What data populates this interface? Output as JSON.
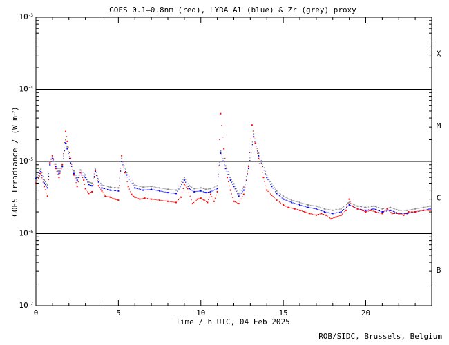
{
  "chart_data": {
    "type": "scatter",
    "title": "GOES 0.1–0.8nm (red), LYRA Al (blue) & Zr (grey) proxy",
    "xlabel": "Time / h UTC, 04 Feb 2025",
    "ylabel": "GOES Irradiance / (W m",
    "ylabel_sup": "-2",
    "ylabel_end": ")",
    "xlim": [
      0,
      24
    ],
    "ylim": [
      1e-07,
      0.001
    ],
    "yscale": "log",
    "x_ticks": [
      {
        "value": 0,
        "label": "0"
      },
      {
        "value": 5,
        "label": "5"
      },
      {
        "value": 10,
        "label": "10"
      },
      {
        "value": 15,
        "label": "15"
      },
      {
        "value": 20,
        "label": "20"
      }
    ],
    "y_ticks": [
      {
        "value": 0.001,
        "label": "10",
        "exp": "-3"
      },
      {
        "value": 0.0001,
        "label": "10",
        "exp": "-4"
      },
      {
        "value": 1e-05,
        "label": "10",
        "exp": "-5"
      },
      {
        "value": 1e-06,
        "label": "10",
        "exp": "-6"
      },
      {
        "value": 1e-07,
        "label": "10",
        "exp": "-7"
      }
    ],
    "flare_classes": [
      {
        "label": "X",
        "low": 0.0001,
        "high": 0.001
      },
      {
        "label": "M",
        "low": 1e-05,
        "high": 0.0001
      },
      {
        "label": "C",
        "low": 1e-06,
        "high": 1e-05
      },
      {
        "label": "B",
        "low": 1e-07,
        "high": 1e-06
      }
    ],
    "threshold_lines": [
      0.0001,
      1e-05,
      1e-06
    ],
    "colors": {
      "goes": "#ff0000",
      "lyra_al": "#0000ff",
      "lyra_zr": "#888888"
    },
    "series": [
      {
        "name": "GOES 0.1–0.8nm",
        "color": "#ff0000",
        "x": [
          0.0,
          0.3,
          0.5,
          0.7,
          0.85,
          1.0,
          1.2,
          1.4,
          1.6,
          1.8,
          1.9,
          2.1,
          2.3,
          2.5,
          2.7,
          2.9,
          3.0,
          3.2,
          3.4,
          3.6,
          3.8,
          4.0,
          4.2,
          4.5,
          4.8,
          5.0,
          5.2,
          5.4,
          5.6,
          5.8,
          6.0,
          6.3,
          6.6,
          7.0,
          7.5,
          8.0,
          8.5,
          8.8,
          9.0,
          9.2,
          9.5,
          9.8,
          10.0,
          10.2,
          10.4,
          10.6,
          10.8,
          11.0,
          11.2,
          11.4,
          11.6,
          11.8,
          12.0,
          12.3,
          12.6,
          12.9,
          13.1,
          13.3,
          13.5,
          13.8,
          14.0,
          14.3,
          14.6,
          15.0,
          15.3,
          15.7,
          16.0,
          16.3,
          16.6,
          17.0,
          17.3,
          17.6,
          17.9,
          18.2,
          18.5,
          18.8,
          19.0,
          19.2,
          19.5,
          19.8,
          20.0,
          20.3,
          20.6,
          21.0,
          21.3,
          21.6,
          22.0,
          22.3,
          22.6,
          23.0,
          23.5,
          23.9
        ],
        "y": [
          5e-06,
          6.8e-06,
          4.5e-06,
          3.3e-06,
          9.5e-06,
          1.2e-05,
          8e-06,
          6e-06,
          9e-06,
          2.6e-05,
          1.9e-05,
          1.1e-05,
          6.5e-06,
          4.5e-06,
          7e-06,
          5.5e-06,
          4.2e-06,
          3.6e-06,
          3.8e-06,
          7.5e-06,
          4.6e-06,
          3.9e-06,
          3.3e-06,
          3.2e-06,
          3e-06,
          2.9e-06,
          1.2e-05,
          7e-06,
          4.5e-06,
          3.5e-06,
          3.2e-06,
          3e-06,
          3.1e-06,
          3e-06,
          2.9e-06,
          2.8e-06,
          2.7e-06,
          3.2e-06,
          4.8e-06,
          4.2e-06,
          2.6e-06,
          3e-06,
          3.1e-06,
          2.9e-06,
          2.7e-06,
          3.5e-06,
          2.8e-06,
          3.8e-06,
          4.6e-05,
          1.5e-05,
          6e-06,
          4e-06,
          2.8e-06,
          2.6e-06,
          3.5e-06,
          8.5e-06,
          3.2e-05,
          1.8e-05,
          1.1e-05,
          6e-06,
          4e-06,
          3.4e-06,
          2.9e-06,
          2.5e-06,
          2.3e-06,
          2.2e-06,
          2.1e-06,
          2e-06,
          1.9e-06,
          1.8e-06,
          1.9e-06,
          1.8e-06,
          1.6e-06,
          1.7e-06,
          1.8e-06,
          2.1e-06,
          3e-06,
          2.4e-06,
          2.2e-06,
          2.1e-06,
          2e-06,
          2.1e-06,
          2e-06,
          1.9e-06,
          2.2e-06,
          1.9e-06,
          1.9e-06,
          1.8e-06,
          2e-06,
          2e-06,
          2.1e-06,
          2.1e-06
        ]
      },
      {
        "name": "LYRA Al proxy",
        "color": "#0000ff",
        "x": [
          0.0,
          0.3,
          0.5,
          0.7,
          0.85,
          1.0,
          1.2,
          1.4,
          1.6,
          1.8,
          1.9,
          2.1,
          2.3,
          2.5,
          2.7,
          3.0,
          3.2,
          3.4,
          3.6,
          3.8,
          4.0,
          4.5,
          5.0,
          5.2,
          5.5,
          6.0,
          6.5,
          7.0,
          7.5,
          8.0,
          8.5,
          9.0,
          9.3,
          9.6,
          10.0,
          10.3,
          10.6,
          11.0,
          11.2,
          11.5,
          11.8,
          12.0,
          12.3,
          12.6,
          12.9,
          13.2,
          13.5,
          14.0,
          14.3,
          14.6,
          15.0,
          15.5,
          16.0,
          16.5,
          17.0,
          17.5,
          18.0,
          18.5,
          19.0,
          19.5,
          20.0,
          20.5,
          21.0,
          21.5,
          22.0,
          22.5,
          23.0,
          23.5,
          23.9
        ],
        "y": [
          5.8e-06,
          7.2e-06,
          5e-06,
          4.3e-06,
          9e-06,
          1.1e-05,
          8.5e-06,
          6.8e-06,
          8.5e-06,
          1.8e-05,
          1.5e-05,
          9.5e-06,
          6.8e-06,
          5.5e-06,
          7e-06,
          6e-06,
          4.8e-06,
          4.6e-06,
          7.2e-06,
          5.2e-06,
          4.3e-06,
          4e-06,
          3.9e-06,
          1e-05,
          6.5e-06,
          4.3e-06,
          4e-06,
          4.1e-06,
          3.9e-06,
          3.7e-06,
          3.6e-06,
          5.5e-06,
          4.2e-06,
          3.8e-06,
          3.9e-06,
          3.7e-06,
          3.8e-06,
          4.2e-06,
          1.3e-05,
          8e-06,
          5.5e-06,
          4.5e-06,
          3.3e-06,
          4e-06,
          8e-06,
          2.2e-05,
          1.2e-05,
          6e-06,
          4.5e-06,
          3.6e-06,
          3e-06,
          2.7e-06,
          2.5e-06,
          2.3e-06,
          2.2e-06,
          2e-06,
          1.9e-06,
          2e-06,
          2.5e-06,
          2.2e-06,
          2.1e-06,
          2.2e-06,
          2e-06,
          2.1e-06,
          1.9e-06,
          1.9e-06,
          2e-06,
          2.1e-06,
          2.2e-06
        ]
      },
      {
        "name": "LYRA Zr proxy",
        "color": "#888888",
        "x": [
          0.0,
          0.3,
          0.5,
          0.7,
          0.85,
          1.0,
          1.2,
          1.4,
          1.6,
          1.8,
          1.9,
          2.1,
          2.3,
          2.5,
          2.7,
          3.0,
          3.2,
          3.4,
          3.6,
          3.8,
          4.0,
          4.5,
          5.0,
          5.2,
          5.5,
          6.0,
          6.5,
          7.0,
          7.5,
          8.0,
          8.5,
          9.0,
          9.3,
          9.6,
          10.0,
          10.3,
          10.6,
          11.0,
          11.2,
          11.5,
          11.8,
          12.0,
          12.3,
          12.6,
          12.9,
          13.2,
          13.5,
          14.0,
          14.3,
          14.6,
          15.0,
          15.5,
          16.0,
          16.5,
          17.0,
          17.5,
          18.0,
          18.5,
          19.0,
          19.5,
          20.0,
          20.5,
          21.0,
          21.5,
          22.0,
          22.5,
          23.0,
          23.5,
          23.9
        ],
        "y": [
          6.3e-06,
          7.8e-06,
          5.5e-06,
          4.7e-06,
          9.8e-06,
          1.2e-05,
          9.2e-06,
          7.4e-06,
          9.2e-06,
          2e-05,
          1.6e-05,
          1e-05,
          7.4e-06,
          6e-06,
          7.6e-06,
          6.5e-06,
          5.2e-06,
          5e-06,
          7.8e-06,
          5.7e-06,
          4.7e-06,
          4.4e-06,
          4.3e-06,
          1.1e-05,
          7e-06,
          4.7e-06,
          4.4e-06,
          4.5e-06,
          4.3e-06,
          4.1e-06,
          4e-06,
          6e-06,
          4.6e-06,
          4.2e-06,
          4.3e-06,
          4.1e-06,
          4.2e-06,
          4.6e-06,
          1.4e-05,
          8.7e-06,
          6e-06,
          4.9e-06,
          3.6e-06,
          4.4e-06,
          8.7e-06,
          2.4e-05,
          1.3e-05,
          6.5e-06,
          4.9e-06,
          3.9e-06,
          3.3e-06,
          2.9e-06,
          2.7e-06,
          2.5e-06,
          2.4e-06,
          2.2e-06,
          2.1e-06,
          2.2e-06,
          2.7e-06,
          2.4e-06,
          2.3e-06,
          2.4e-06,
          2.2e-06,
          2.3e-06,
          2.1e-06,
          2.1e-06,
          2.2e-06,
          2.3e-06,
          2.4e-06
        ]
      }
    ]
  },
  "credit": "ROB/SIDC, Brussels, Belgium"
}
